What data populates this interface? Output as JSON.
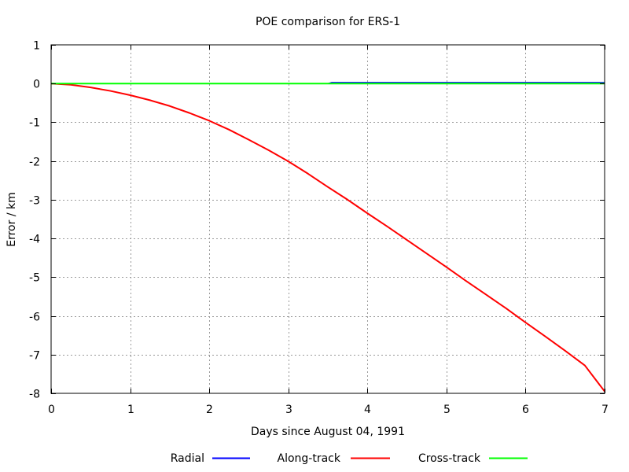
{
  "chart_data": {
    "type": "line",
    "title": "POE comparison for ERS-1",
    "xlabel": "Days since August 04, 1991",
    "ylabel": "Error / km",
    "xlim": [
      0,
      7
    ],
    "ylim": [
      -8,
      1
    ],
    "xticks": [
      0,
      1,
      2,
      3,
      4,
      5,
      6,
      7
    ],
    "yticks": [
      1,
      0,
      -1,
      -2,
      -3,
      -4,
      -5,
      -6,
      -7,
      -8
    ],
    "grid": true,
    "legend_position": "bottom",
    "series": [
      {
        "name": "Radial",
        "color": "#0000ff",
        "x": [
          0,
          3.5,
          3.55,
          7
        ],
        "y": [
          0,
          0,
          0.03,
          0.03
        ]
      },
      {
        "name": "Along-track",
        "color": "#ff0000",
        "x": [
          0,
          0.25,
          0.5,
          0.75,
          1.0,
          1.25,
          1.5,
          1.75,
          2.0,
          2.25,
          2.5,
          2.75,
          3.0,
          3.25,
          3.5,
          3.75,
          4.0,
          4.25,
          4.5,
          4.75,
          5.0,
          5.25,
          5.5,
          5.75,
          6.0,
          6.25,
          6.5,
          6.75,
          7.0
        ],
        "y": [
          0,
          -0.03,
          -0.1,
          -0.19,
          -0.3,
          -0.43,
          -0.58,
          -0.76,
          -0.96,
          -1.19,
          -1.45,
          -1.72,
          -2.01,
          -2.33,
          -2.67,
          -3.0,
          -3.35,
          -3.69,
          -4.04,
          -4.39,
          -4.74,
          -5.1,
          -5.45,
          -5.8,
          -6.17,
          -6.53,
          -6.9,
          -7.28,
          -7.95
        ]
      },
      {
        "name": "Cross-track",
        "color": "#00ff00",
        "x": [
          0,
          7
        ],
        "y": [
          0,
          0
        ]
      }
    ]
  }
}
